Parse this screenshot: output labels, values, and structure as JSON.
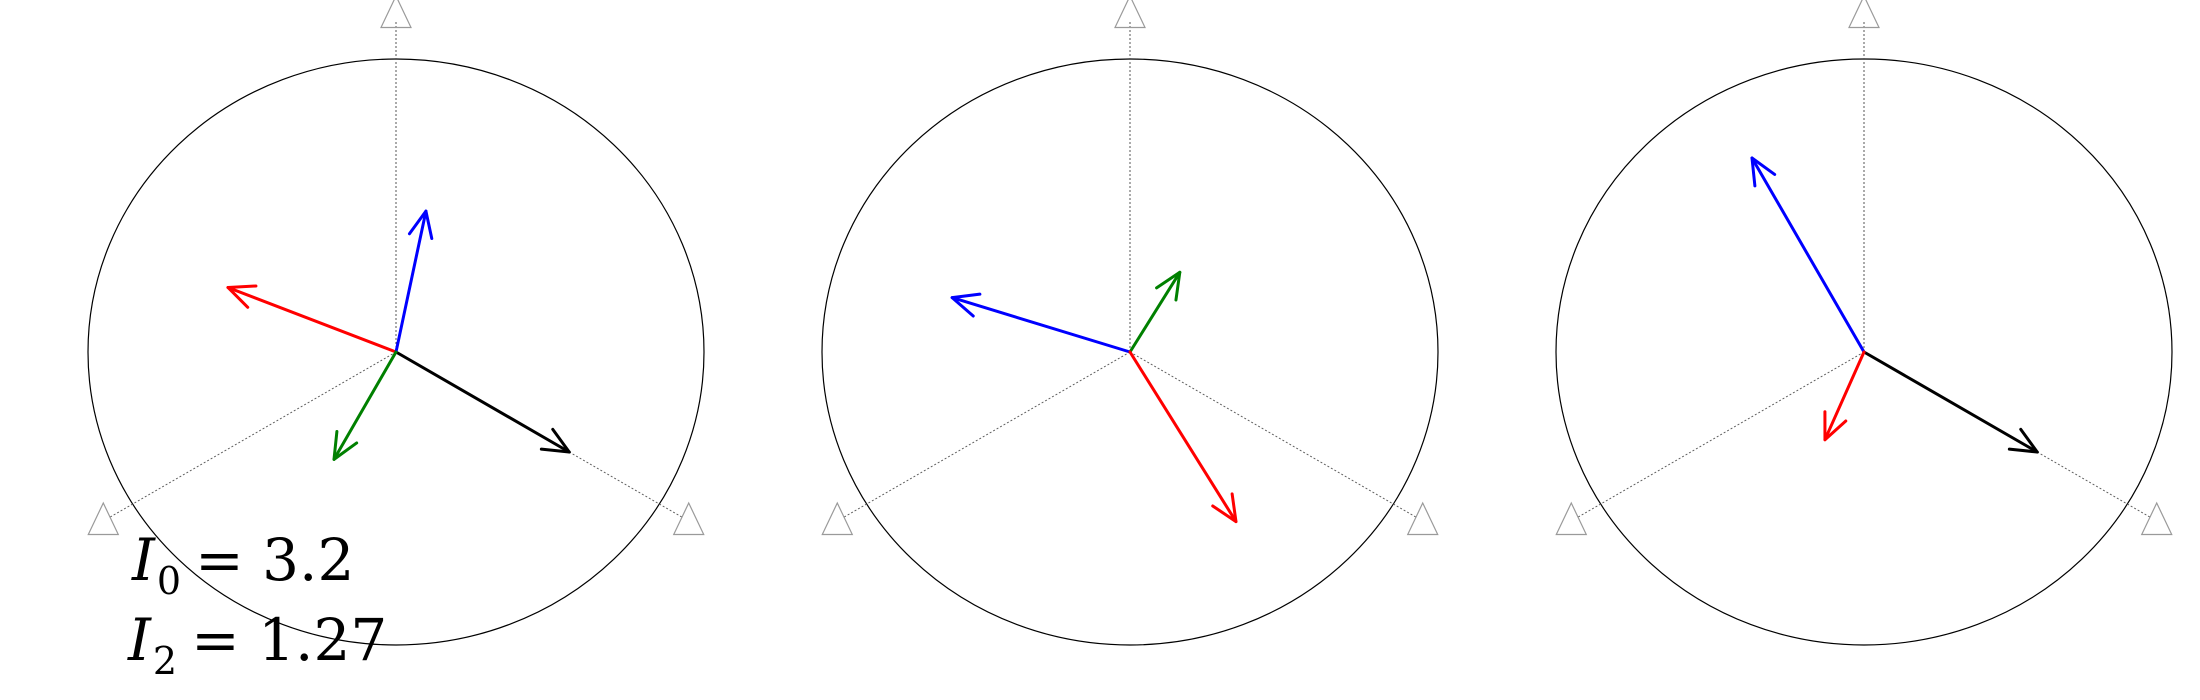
{
  "labels": {
    "i0": {
      "symbol": "I",
      "subscript": "0",
      "value": "= 3.2"
    },
    "i2": {
      "symbol": "I",
      "subscript": "2",
      "value": "= 1.27"
    }
  },
  "colors": {
    "black": "#000000",
    "red": "#ff0000",
    "blue": "#0000ff",
    "green": "#008000",
    "circle": "#000000",
    "sensor": "#9a9a9a",
    "axis": "#555555"
  },
  "panels": [
    {
      "name": "panel-1",
      "vectors": [
        {
          "name": "black-vector",
          "color": "black",
          "angle_deg": -30,
          "magnitude": 1.0
        },
        {
          "name": "red-vector",
          "color": "red",
          "angle_deg": 159,
          "magnitude": 0.9
        },
        {
          "name": "blue-vector",
          "color": "blue",
          "angle_deg": 78,
          "magnitude": 0.72
        },
        {
          "name": "green-vector",
          "color": "green",
          "angle_deg": -120,
          "magnitude": 0.62
        }
      ]
    },
    {
      "name": "panel-2",
      "vectors": [
        {
          "name": "blue-vector",
          "color": "blue",
          "angle_deg": 163,
          "magnitude": 0.93
        },
        {
          "name": "green-vector",
          "color": "green",
          "angle_deg": 58,
          "magnitude": 0.47
        },
        {
          "name": "red-vector",
          "color": "red",
          "angle_deg": -58,
          "magnitude": 1.0
        }
      ]
    },
    {
      "name": "panel-3",
      "vectors": [
        {
          "name": "black-vector",
          "color": "black",
          "angle_deg": -30,
          "magnitude": 1.0
        },
        {
          "name": "blue-vector",
          "color": "blue",
          "angle_deg": 120,
          "magnitude": 1.12
        },
        {
          "name": "red-vector",
          "color": "red",
          "angle_deg": -114,
          "magnitude": 0.48
        }
      ]
    }
  ]
}
